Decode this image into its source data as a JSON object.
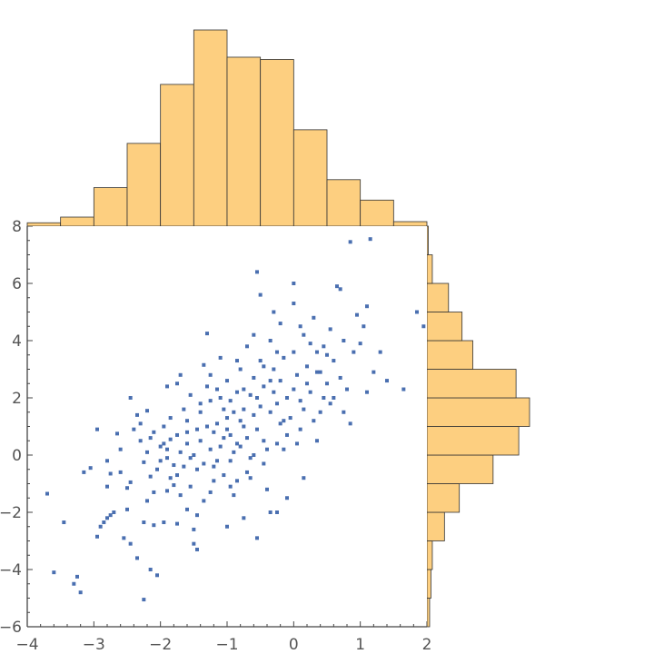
{
  "chart_data": {
    "type": "scatter",
    "title": "",
    "xlabel": "",
    "ylabel": "",
    "xlim": [
      -4,
      2
    ],
    "ylim": [
      -6,
      8
    ],
    "x_ticks": [
      -4,
      -3,
      -2,
      -1,
      0,
      1,
      2
    ],
    "y_ticks": [
      -6,
      -4,
      -2,
      0,
      2,
      4,
      6,
      8
    ],
    "marker_color": "#4A6FB0",
    "histogram_color": "#FDCF80",
    "grid": false,
    "x_histogram": {
      "bin_width": 0.5,
      "bins": [
        {
          "start": -4.0,
          "count": 3
        },
        {
          "start": -3.5,
          "count": 8
        },
        {
          "start": -3.0,
          "count": 34
        },
        {
          "start": -2.5,
          "count": 73
        },
        {
          "start": -2.0,
          "count": 125
        },
        {
          "start": -1.5,
          "count": 173
        },
        {
          "start": -1.0,
          "count": 149
        },
        {
          "start": -0.5,
          "count": 147
        },
        {
          "start": 0.0,
          "count": 85
        },
        {
          "start": 0.5,
          "count": 41
        },
        {
          "start": 1.0,
          "count": 23
        },
        {
          "start": 1.5,
          "count": 4
        }
      ]
    },
    "y_histogram": {
      "bin_width": 1,
      "bins": [
        {
          "start": -6,
          "count": 2
        },
        {
          "start": -5,
          "count": 3
        },
        {
          "start": -4,
          "count": 4
        },
        {
          "start": -3,
          "count": 13
        },
        {
          "start": -2,
          "count": 24
        },
        {
          "start": -1,
          "count": 49
        },
        {
          "start": 0,
          "count": 68
        },
        {
          "start": 1,
          "count": 76
        },
        {
          "start": 2,
          "count": 66
        },
        {
          "start": 3,
          "count": 34
        },
        {
          "start": 4,
          "count": 26
        },
        {
          "start": 5,
          "count": 16
        },
        {
          "start": 6,
          "count": 4
        },
        {
          "start": 7,
          "count": 1
        }
      ]
    },
    "points": [
      [
        -3.7,
        -1.35
      ],
      [
        -3.45,
        -2.35
      ],
      [
        -3.6,
        -4.1
      ],
      [
        -3.25,
        -4.25
      ],
      [
        -3.3,
        -4.5
      ],
      [
        -3.2,
        -4.8
      ],
      [
        -3.15,
        -0.6
      ],
      [
        -2.95,
        -2.85
      ],
      [
        -2.9,
        -2.5
      ],
      [
        -2.85,
        -2.35
      ],
      [
        -2.8,
        -2.2
      ],
      [
        -2.75,
        -2.1
      ],
      [
        -2.7,
        -2.0
      ],
      [
        -2.8,
        -1.1
      ],
      [
        -2.75,
        -0.65
      ],
      [
        -2.8,
        -0.2
      ],
      [
        -2.65,
        0.75
      ],
      [
        -2.6,
        0.2
      ],
      [
        -2.6,
        -0.6
      ],
      [
        -2.5,
        -1.15
      ],
      [
        -2.45,
        -0.95
      ],
      [
        -2.55,
        -2.9
      ],
      [
        -2.45,
        -3.1
      ],
      [
        -2.35,
        -3.6
      ],
      [
        -2.25,
        -5.05
      ],
      [
        -2.15,
        -4.0
      ],
      [
        -2.05,
        -4.2
      ],
      [
        -2.45,
        2.0
      ],
      [
        -2.3,
        1.1
      ],
      [
        -2.2,
        1.55
      ],
      [
        -2.15,
        0.6
      ],
      [
        -2.2,
        0.1
      ],
      [
        -2.25,
        -0.25
      ],
      [
        -2.15,
        -0.75
      ],
      [
        -2.1,
        -1.3
      ],
      [
        -2.2,
        -1.6
      ],
      [
        -2.25,
        -2.35
      ],
      [
        -2.1,
        -2.45
      ],
      [
        -2.0,
        -0.2
      ],
      [
        -2.0,
        0.3
      ],
      [
        -1.95,
        0.4
      ],
      [
        -1.9,
        0.2
      ],
      [
        -1.85,
        0.55
      ],
      [
        -1.8,
        -0.35
      ],
      [
        -1.75,
        -0.7
      ],
      [
        -1.8,
        -1.05
      ],
      [
        -1.9,
        -1.25
      ],
      [
        -1.95,
        -2.35
      ],
      [
        -1.75,
        -2.4
      ],
      [
        -1.9,
        2.4
      ],
      [
        -1.85,
        1.3
      ],
      [
        -1.75,
        2.5
      ],
      [
        -1.7,
        2.8
      ],
      [
        -1.65,
        1.6
      ],
      [
        -1.6,
        0.8
      ],
      [
        -1.6,
        0.4
      ],
      [
        -1.55,
        -0.1
      ],
      [
        -1.55,
        -1.1
      ],
      [
        -1.6,
        -1.9
      ],
      [
        -1.5,
        -2.6
      ],
      [
        -1.5,
        -3.1
      ],
      [
        -1.45,
        -2.1
      ],
      [
        -1.45,
        0.9
      ],
      [
        -1.4,
        1.5
      ],
      [
        -1.35,
        3.15
      ],
      [
        -1.3,
        4.25
      ],
      [
        -1.3,
        2.4
      ],
      [
        -1.25,
        1.9
      ],
      [
        -1.25,
        0.2
      ],
      [
        -1.2,
        -0.4
      ],
      [
        -1.2,
        -0.9
      ],
      [
        -1.15,
        1.1
      ],
      [
        -1.1,
        2.0
      ],
      [
        -1.1,
        3.4
      ],
      [
        -1.05,
        0.6
      ],
      [
        -1.0,
        1.3
      ],
      [
        -1.0,
        2.6
      ],
      [
        -0.95,
        -0.2
      ],
      [
        -0.95,
        0.7
      ],
      [
        -0.9,
        1.5
      ],
      [
        -0.9,
        -1.4
      ],
      [
        -0.85,
        2.2
      ],
      [
        -0.8,
        3.0
      ],
      [
        -0.8,
        0.3
      ],
      [
        -0.75,
        1.0
      ],
      [
        -0.7,
        -0.6
      ],
      [
        -0.7,
        3.8
      ],
      [
        -0.65,
        2.1
      ],
      [
        -0.6,
        1.4
      ],
      [
        -0.6,
        0.0
      ],
      [
        -0.55,
        6.4
      ],
      [
        -0.5,
        5.6
      ],
      [
        -0.5,
        3.3
      ],
      [
        -0.45,
        2.4
      ],
      [
        -0.45,
        0.5
      ],
      [
        -0.4,
        -1.2
      ],
      [
        -0.35,
        -2.0
      ],
      [
        -0.35,
        4.0
      ],
      [
        -0.3,
        3.0
      ],
      [
        -0.25,
        1.8
      ],
      [
        -0.2,
        4.6
      ],
      [
        -0.2,
        2.6
      ],
      [
        -0.15,
        1.2
      ],
      [
        -0.1,
        0.7
      ],
      [
        -0.1,
        -1.5
      ],
      [
        0.0,
        6.0
      ],
      [
        0.0,
        5.3
      ],
      [
        0.0,
        3.6
      ],
      [
        0.05,
        2.8
      ],
      [
        0.1,
        1.9
      ],
      [
        0.1,
        0.9
      ],
      [
        0.15,
        4.2
      ],
      [
        0.2,
        3.1
      ],
      [
        0.25,
        2.2
      ],
      [
        0.3,
        4.8
      ],
      [
        0.35,
        2.9
      ],
      [
        0.4,
        1.5
      ],
      [
        0.45,
        3.8
      ],
      [
        0.5,
        2.5
      ],
      [
        0.55,
        4.4
      ],
      [
        0.6,
        3.3
      ],
      [
        0.65,
        5.9
      ],
      [
        0.7,
        2.7
      ],
      [
        0.7,
        5.8
      ],
      [
        0.75,
        4.0
      ],
      [
        0.8,
        2.3
      ],
      [
        0.85,
        1.1
      ],
      [
        0.9,
        3.6
      ],
      [
        0.95,
        4.9
      ],
      [
        1.0,
        3.9
      ],
      [
        1.05,
        4.5
      ],
      [
        1.1,
        5.2
      ],
      [
        1.1,
        2.2
      ],
      [
        1.2,
        2.9
      ],
      [
        1.3,
        3.6
      ],
      [
        1.4,
        2.6
      ],
      [
        1.65,
        2.3
      ],
      [
        1.85,
        5.0
      ],
      [
        1.95,
        4.5
      ],
      [
        0.85,
        7.45
      ],
      [
        1.15,
        7.55
      ],
      [
        -2.4,
        0.9
      ],
      [
        -2.3,
        0.5
      ],
      [
        -2.05,
        -0.5
      ],
      [
        -1.95,
        1.0
      ],
      [
        -1.7,
        0.1
      ],
      [
        -1.65,
        -0.4
      ],
      [
        -1.5,
        0.0
      ],
      [
        -1.45,
        -0.5
      ],
      [
        -1.4,
        0.5
      ],
      [
        -1.35,
        -0.3
      ],
      [
        -1.3,
        1.0
      ],
      [
        -1.25,
        -1.3
      ],
      [
        -1.2,
        0.8
      ],
      [
        -1.15,
        -0.2
      ],
      [
        -1.1,
        0.3
      ],
      [
        -1.05,
        -0.7
      ],
      [
        -1.0,
        0.9
      ],
      [
        -0.95,
        1.9
      ],
      [
        -0.9,
        0.1
      ],
      [
        -0.85,
        -0.9
      ],
      [
        -0.8,
        1.2
      ],
      [
        -0.75,
        2.3
      ],
      [
        -0.7,
        0.6
      ],
      [
        -0.65,
        -0.1
      ],
      [
        -0.6,
        2.7
      ],
      [
        -0.55,
        0.9
      ],
      [
        -0.5,
        1.7
      ],
      [
        -0.45,
        3.1
      ],
      [
        -0.4,
        0.2
      ],
      [
        -0.35,
        1.5
      ],
      [
        -0.3,
        2.2
      ],
      [
        -0.25,
        0.4
      ],
      [
        -0.2,
        1.1
      ],
      [
        -0.15,
        3.4
      ],
      [
        -0.1,
        2.0
      ],
      [
        -0.05,
        1.3
      ],
      [
        0.05,
        0.4
      ],
      [
        0.15,
        1.6
      ],
      [
        0.2,
        2.5
      ],
      [
        0.3,
        1.2
      ],
      [
        0.4,
        2.9
      ],
      [
        0.5,
        3.5
      ],
      [
        0.6,
        2.0
      ],
      [
        -1.6,
        1.2
      ],
      [
        -1.55,
        2.1
      ],
      [
        -1.85,
        -0.8
      ],
      [
        -1.7,
        -1.4
      ],
      [
        -1.35,
        -1.6
      ],
      [
        -1.25,
        2.8
      ],
      [
        -1.05,
        1.6
      ],
      [
        -0.95,
        -1.1
      ],
      [
        -0.85,
        0.4
      ],
      [
        -0.75,
        1.6
      ],
      [
        -0.65,
        -0.8
      ],
      [
        -0.55,
        2.0
      ],
      [
        -0.45,
        -0.3
      ],
      [
        -0.35,
        2.6
      ],
      [
        -0.25,
        3.6
      ],
      [
        -0.15,
        0.2
      ],
      [
        0.0,
        2.3
      ],
      [
        0.25,
        3.9
      ],
      [
        0.45,
        2.0
      ],
      [
        0.55,
        1.8
      ],
      [
        -2.1,
        0.8
      ],
      [
        -1.9,
        -0.1
      ],
      [
        -1.75,
        0.7
      ],
      [
        -1.4,
        1.8
      ],
      [
        -1.15,
        2.3
      ],
      [
        -0.85,
        3.3
      ],
      [
        -0.6,
        4.2
      ],
      [
        -0.3,
        5.0
      ],
      [
        0.1,
        4.5
      ],
      [
        0.35,
        3.6
      ],
      [
        -3.05,
        -0.45
      ],
      [
        -2.95,
        0.9
      ],
      [
        -2.5,
        -1.9
      ],
      [
        -2.35,
        1.4
      ],
      [
        -1.45,
        -3.3
      ],
      [
        -1.0,
        -2.5
      ],
      [
        -0.75,
        -2.2
      ],
      [
        -0.55,
        -2.9
      ],
      [
        -0.25,
        -2.0
      ],
      [
        0.15,
        -0.8
      ],
      [
        0.35,
        0.5
      ],
      [
        0.75,
        1.5
      ]
    ]
  }
}
